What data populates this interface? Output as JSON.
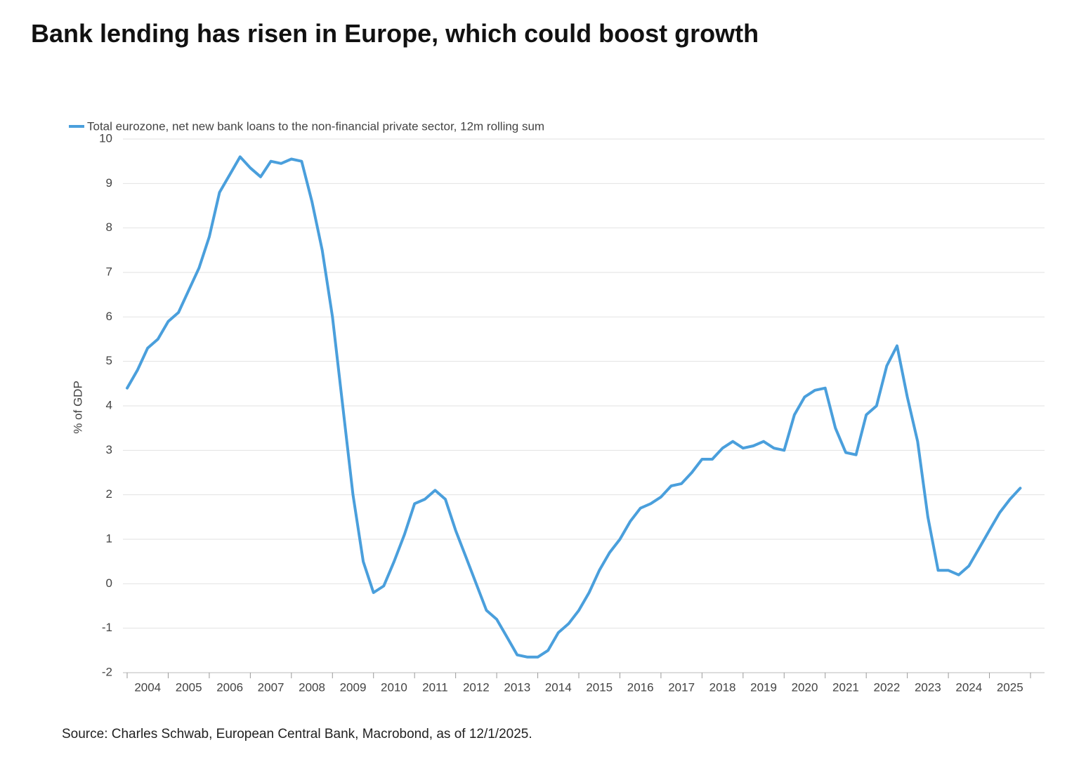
{
  "chart_data": {
    "type": "line",
    "title": "Bank lending has risen in Europe, which could boost growth",
    "y_label": "% of GDP",
    "source": "Source: Charles Schwab, European Central Bank, Macrobond, as of 12/1/2025.",
    "x": [
      2004.0,
      2004.25,
      2004.5,
      2004.75,
      2005.0,
      2005.25,
      2005.5,
      2005.75,
      2006.0,
      2006.25,
      2006.5,
      2006.75,
      2007.0,
      2007.25,
      2007.5,
      2007.75,
      2008.0,
      2008.25,
      2008.5,
      2008.75,
      2009.0,
      2009.25,
      2009.5,
      2009.75,
      2010.0,
      2010.25,
      2010.5,
      2010.75,
      2011.0,
      2011.25,
      2011.5,
      2011.75,
      2012.0,
      2012.25,
      2012.5,
      2012.75,
      2013.0,
      2013.25,
      2013.5,
      2013.75,
      2014.0,
      2014.25,
      2014.5,
      2014.75,
      2015.0,
      2015.25,
      2015.5,
      2015.75,
      2016.0,
      2016.25,
      2016.5,
      2016.75,
      2017.0,
      2017.25,
      2017.5,
      2017.75,
      2018.0,
      2018.25,
      2018.5,
      2018.75,
      2019.0,
      2019.25,
      2019.5,
      2019.75,
      2020.0,
      2020.25,
      2020.5,
      2020.75,
      2021.0,
      2021.25,
      2021.5,
      2021.75,
      2022.0,
      2022.25,
      2022.5,
      2022.75,
      2023.0,
      2023.25,
      2023.5,
      2023.75,
      2024.0,
      2024.25,
      2024.5,
      2024.75,
      2025.0,
      2025.25,
      2025.5,
      2025.75
    ],
    "series": [
      {
        "name": "Total eurozone, net new bank loans to the non-financial private sector, 12m rolling sum",
        "color": "#4a9fdc",
        "values": [
          4.4,
          4.8,
          5.3,
          5.5,
          5.9,
          6.1,
          6.6,
          7.1,
          7.8,
          8.8,
          9.2,
          9.6,
          9.35,
          9.15,
          9.5,
          9.45,
          9.55,
          9.5,
          8.6,
          7.5,
          6.0,
          4.0,
          2.0,
          0.5,
          -0.2,
          -0.05,
          0.5,
          1.1,
          1.8,
          1.9,
          2.1,
          1.9,
          1.2,
          0.6,
          0.0,
          -0.6,
          -0.8,
          -1.2,
          -1.6,
          -1.65,
          -1.65,
          -1.5,
          -1.1,
          -0.9,
          -0.6,
          -0.2,
          0.3,
          0.7,
          1.0,
          1.4,
          1.7,
          1.8,
          1.95,
          2.2,
          2.25,
          2.5,
          2.8,
          2.8,
          3.05,
          3.2,
          3.05,
          3.1,
          3.2,
          3.05,
          3.0,
          3.8,
          4.2,
          4.35,
          4.4,
          3.5,
          2.95,
          2.9,
          3.8,
          4.0,
          4.9,
          5.35,
          4.2,
          3.2,
          1.5,
          0.3,
          0.3,
          0.2,
          0.4,
          0.8,
          1.2,
          1.6,
          1.9,
          2.15
        ]
      }
    ],
    "xlim": [
      2004,
      2026
    ],
    "xticks": [
      2004,
      2005,
      2006,
      2007,
      2008,
      2009,
      2010,
      2011,
      2012,
      2013,
      2014,
      2015,
      2016,
      2017,
      2018,
      2019,
      2020,
      2021,
      2022,
      2023,
      2024,
      2025
    ],
    "ylim": [
      -2,
      10
    ],
    "yticks": [
      -2,
      -1,
      0,
      1,
      2,
      3,
      4,
      5,
      6,
      7,
      8,
      9,
      10
    ],
    "grid": true,
    "legend": "top-left"
  }
}
